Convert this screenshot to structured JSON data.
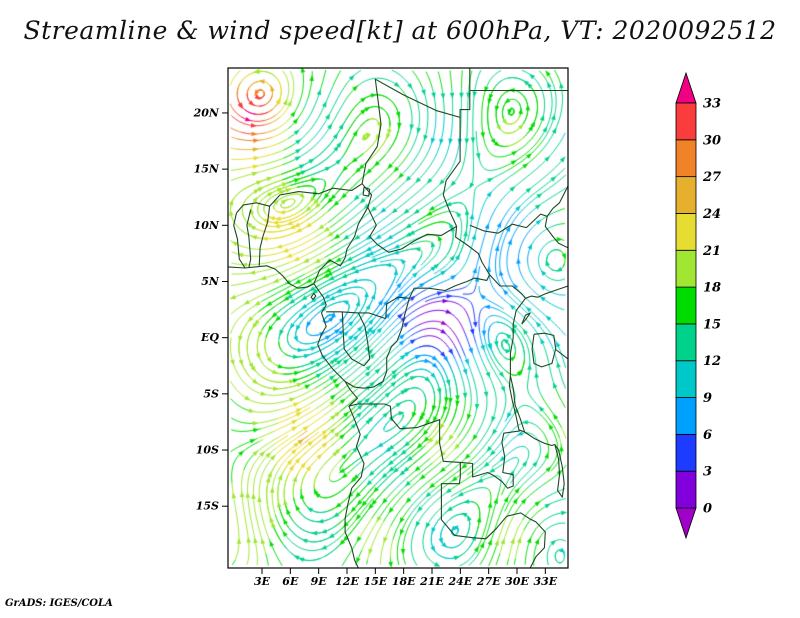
{
  "title": "Streamline & wind speed[kt] at 600hPa, VT: 2020092512",
  "attribution": "GrADS: IGES/COLA",
  "chart_data": {
    "type": "streamline",
    "title": "Streamline & wind speed[kt] at 600hPa, VT: 2020092512",
    "field": "wind speed",
    "units": "kt",
    "level": "600hPa",
    "valid_time": "2020092512",
    "x_axis": {
      "ticks": [
        "3E",
        "6E",
        "9E",
        "12E",
        "15E",
        "18E",
        "21E",
        "24E",
        "27E",
        "30E",
        "33E"
      ],
      "values": [
        3,
        6,
        9,
        12,
        15,
        18,
        21,
        24,
        27,
        30,
        33
      ]
    },
    "y_axis": {
      "ticks": [
        "20N",
        "15N",
        "10N",
        "5N",
        "EQ",
        "5S",
        "10S",
        "15S"
      ],
      "values": [
        20,
        15,
        10,
        5,
        0,
        -5,
        -10,
        -15
      ]
    },
    "colorbar": {
      "orientation": "vertical",
      "position": "right",
      "levels": [
        0,
        3,
        6,
        9,
        12,
        15,
        18,
        21,
        24,
        27,
        30,
        33
      ],
      "colors": [
        "#a000c8",
        "#8200dc",
        "#1e3cff",
        "#00a0ff",
        "#00c8c8",
        "#00d28c",
        "#00dc00",
        "#a0e632",
        "#e6dc32",
        "#e6af2d",
        "#f08228",
        "#fa3c3c",
        "#f00082"
      ]
    },
    "map_outline_color": "#1d4a24",
    "grid": "off",
    "legend": "colorbar right"
  }
}
